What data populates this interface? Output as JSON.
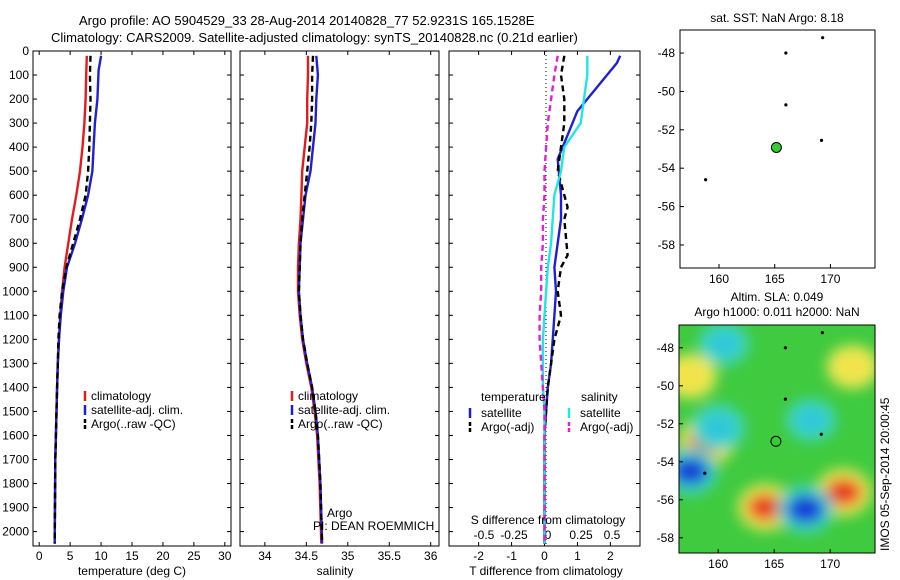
{
  "header": {
    "line1": "Argo profile: AO 5904529_33 28-Aug-2014 20140828_77 52.9231S 165.1528E",
    "line2": "Climatology: CARS2009. Satellite-adjusted climatology: synTS_20140828.nc (0.21d earlier)"
  },
  "colors": {
    "climatology": "#e41a1c",
    "satellite": "#1f1fd6",
    "argo": "#000000",
    "cyan": "#22e5e5",
    "magenta": "#e21fd9",
    "marker": "#33cc33"
  },
  "chart_data": [
    {
      "type": "line",
      "ylabel": "",
      "xlabel": "temperature (deg C)",
      "xlim": [
        -1,
        31
      ],
      "ylim": [
        2060,
        0
      ],
      "xticks": [
        0,
        5,
        10,
        15,
        20,
        25,
        30
      ],
      "yticks": [
        0,
        100,
        200,
        300,
        400,
        500,
        600,
        700,
        800,
        900,
        1000,
        1100,
        1200,
        1300,
        1400,
        1500,
        1600,
        1700,
        1800,
        1900,
        2000
      ],
      "legend": {
        "position": "lower-center",
        "entries": [
          "climatology",
          "satellite-adj. clim.",
          "Argo(..raw -QC)"
        ]
      },
      "series": [
        {
          "name": "climatology",
          "color": "#e41a1c",
          "dash": "",
          "x": [
            7.7,
            7.6,
            7.5,
            7.3,
            7.0,
            6.6,
            6.0,
            5.3,
            4.7,
            4.1,
            3.7,
            3.4,
            3.2,
            3.0,
            2.9,
            2.8,
            2.7,
            2.6,
            2.5
          ],
          "y": [
            20,
            100,
            200,
            300,
            400,
            500,
            600,
            700,
            800,
            900,
            1000,
            1100,
            1200,
            1300,
            1400,
            1500,
            1600,
            1700,
            2050
          ]
        },
        {
          "name": "satellite-adj. clim.",
          "color": "#1f1fd6",
          "dash": "",
          "x": [
            10.0,
            9.6,
            9.4,
            9.0,
            8.8,
            8.6,
            7.9,
            6.9,
            5.8,
            4.5,
            3.9,
            3.5,
            3.2,
            3.0,
            2.9,
            2.8,
            2.7,
            2.6,
            2.5
          ],
          "y": [
            20,
            80,
            200,
            300,
            400,
            500,
            600,
            700,
            800,
            900,
            1000,
            1100,
            1200,
            1300,
            1400,
            1500,
            1600,
            1700,
            2050
          ]
        },
        {
          "name": "Argo(..raw -QC)",
          "color": "#000000",
          "dash": "6,4",
          "x": [
            8.3,
            8.2,
            8.3,
            8.2,
            8.1,
            7.9,
            7.5,
            6.6,
            5.5,
            4.4,
            3.7,
            3.3,
            3.1,
            3.0,
            2.9,
            2.8,
            2.7,
            2.6,
            2.5
          ],
          "y": [
            20,
            100,
            200,
            300,
            400,
            500,
            600,
            700,
            800,
            900,
            1000,
            1100,
            1200,
            1300,
            1400,
            1500,
            1600,
            1700,
            2050
          ]
        }
      ]
    },
    {
      "type": "line",
      "xlabel": "salinity",
      "xlim": [
        33.7,
        36.1
      ],
      "ylim": [
        2060,
        0
      ],
      "xticks": [
        34,
        34.5,
        35,
        35.5,
        36
      ],
      "legend": {
        "position": "lower-center",
        "entries": [
          "climatology",
          "satellite-adj. clim.",
          "Argo(..raw -QC)"
        ]
      },
      "annotations": [
        "Argo",
        "PI: DEAN ROEMMICH"
      ],
      "series": [
        {
          "name": "climatology",
          "color": "#e41a1c",
          "dash": "",
          "x": [
            34.52,
            34.52,
            34.51,
            34.51,
            34.48,
            34.45,
            34.44,
            34.43,
            34.41,
            34.4,
            34.4,
            34.42,
            34.45,
            34.5,
            34.56,
            34.6,
            34.63,
            34.66,
            34.68
          ],
          "y": [
            20,
            100,
            200,
            300,
            400,
            500,
            600,
            700,
            800,
            900,
            1000,
            1100,
            1200,
            1300,
            1400,
            1500,
            1600,
            1800,
            2050
          ]
        },
        {
          "name": "satellite-adj. clim.",
          "color": "#1f1fd6",
          "dash": "",
          "x": [
            34.62,
            34.64,
            34.62,
            34.61,
            34.58,
            34.55,
            34.49,
            34.46,
            34.43,
            34.42,
            34.41,
            34.43,
            34.46,
            34.51,
            34.57,
            34.61,
            34.64,
            34.67,
            34.69
          ],
          "y": [
            20,
            100,
            200,
            300,
            400,
            500,
            600,
            700,
            800,
            900,
            1000,
            1100,
            1200,
            1300,
            1400,
            1500,
            1600,
            1800,
            2050
          ]
        },
        {
          "name": "Argo(..raw -QC)",
          "color": "#000000",
          "dash": "6,4",
          "x": [
            34.58,
            34.57,
            34.57,
            34.56,
            34.54,
            34.51,
            34.48,
            34.45,
            34.43,
            34.42,
            34.41,
            34.43,
            34.46,
            34.51,
            34.57,
            34.61,
            34.64,
            34.67,
            34.69
          ],
          "y": [
            20,
            100,
            200,
            300,
            400,
            500,
            600,
            700,
            800,
            900,
            1000,
            1100,
            1200,
            1300,
            1400,
            1500,
            1600,
            1800,
            2050
          ]
        }
      ]
    },
    {
      "type": "line",
      "xlabel": "T difference from climatology",
      "xlabel2": "S difference from climatology",
      "xlim": [
        -2.9,
        2.9
      ],
      "ylim": [
        2060,
        0
      ],
      "xticks": [
        -2,
        -1,
        0,
        1,
        2
      ],
      "xticks2": [
        "-0.5",
        "-0.25",
        "0",
        "0.25",
        "0.5"
      ],
      "legend": {
        "position": "lower-center",
        "headers": [
          "temperature",
          "salinity"
        ],
        "entries": [
          "satellite",
          "Argo(-adj)",
          "satellite",
          "Argo(-adj)"
        ]
      },
      "series": [
        {
          "name": "temperature satellite",
          "color": "#1f1fd6",
          "dash": "",
          "x": [
            2.3,
            2.2,
            1.6,
            1.0,
            0.7,
            0.4,
            0.5,
            0.5,
            0.4,
            0.3,
            0.35,
            0.3,
            0.2,
            0.1,
            0.05,
            0.0,
            0.0,
            0.0,
            0.0
          ],
          "y": [
            20,
            50,
            150,
            250,
            350,
            450,
            600,
            700,
            800,
            900,
            1000,
            1100,
            1300,
            1400,
            1500,
            1600,
            1700,
            1800,
            2050
          ]
        },
        {
          "name": "temperature Argo(-adj)",
          "color": "#000000",
          "dash": "6,4",
          "x": [
            0.6,
            0.5,
            0.6,
            0.6,
            0.5,
            0.4,
            0.7,
            0.6,
            0.7,
            0.5,
            0.4,
            0.5,
            0.3,
            0.2,
            0.1,
            0.05,
            0.0,
            0.0,
            0.0
          ],
          "y": [
            20,
            100,
            200,
            300,
            400,
            500,
            650,
            700,
            850,
            900,
            1000,
            1100,
            1200,
            1300,
            1400,
            1500,
            1600,
            1700,
            2050
          ]
        },
        {
          "name": "salinity satellite",
          "color": "#22e5e5",
          "dash": "",
          "x": [
            1.3,
            1.3,
            1.2,
            1.1,
            0.6,
            0.5,
            0.3,
            0.25,
            0.2,
            0.1,
            0.05,
            0.0,
            -0.05,
            -0.05,
            -0.05,
            0.0,
            0.0,
            0.0,
            0.0
          ],
          "y": [
            20,
            100,
            200,
            300,
            400,
            500,
            600,
            700,
            800,
            900,
            1000,
            1100,
            1200,
            1300,
            1400,
            1500,
            1600,
            1700,
            2050
          ]
        },
        {
          "name": "salinity Argo(-adj)",
          "color": "#e21fd9",
          "dash": "6,4",
          "x": [
            0.4,
            0.3,
            0.2,
            0.1,
            0.05,
            0.0,
            0.0,
            -0.05,
            -0.05,
            -0.1,
            -0.1,
            -0.15,
            -0.15,
            -0.1,
            -0.05,
            0.0,
            0.0,
            0.0,
            0.0
          ],
          "y": [
            20,
            100,
            200,
            300,
            400,
            500,
            600,
            700,
            800,
            900,
            1000,
            1100,
            1200,
            1300,
            1400,
            1500,
            1600,
            1700,
            2050
          ]
        }
      ]
    },
    {
      "type": "scatter",
      "title": "sat. SST: NaN Argo: 8.18",
      "xlim": [
        156.5,
        174
      ],
      "ylim": [
        -59.2,
        -46.8
      ],
      "xticks": [
        160,
        165,
        170
      ],
      "yticks": [
        -48,
        -50,
        -52,
        -54,
        -56,
        -58
      ],
      "marker": {
        "x": 165.15,
        "y": -52.92,
        "color": "#33cc33"
      },
      "islands": [
        {
          "x": 169.3,
          "y": -47.2
        },
        {
          "x": 166.0,
          "y": -48.0
        },
        {
          "x": 166.0,
          "y": -50.7
        },
        {
          "x": 169.2,
          "y": -52.55
        },
        {
          "x": 158.8,
          "y": -54.6
        }
      ]
    },
    {
      "type": "heatmap",
      "title": "Altim. SLA: 0.049",
      "subtitle": "Argo h1000: 0.011 h2000: NaN",
      "xlim": [
        156.5,
        174
      ],
      "ylim": [
        -58.8,
        -46.8
      ],
      "xticks": [
        160,
        165,
        170
      ],
      "yticks": [
        -48,
        -50,
        -52,
        -54,
        -56,
        -58
      ],
      "marker": {
        "x": 165.15,
        "y": -52.92,
        "color": "#33cc33"
      },
      "blobs": [
        {
          "x": 159.0,
          "y": -52.9,
          "v": 0.95
        },
        {
          "x": 164.2,
          "y": -56.4,
          "v": 0.85
        },
        {
          "x": 171.2,
          "y": -55.6,
          "v": 0.9
        },
        {
          "x": 157.5,
          "y": -49.5,
          "v": 0.7
        },
        {
          "x": 172.0,
          "y": -49.0,
          "v": 0.6
        },
        {
          "x": 160.0,
          "y": -52.2,
          "v": -0.8
        },
        {
          "x": 167.8,
          "y": -56.5,
          "v": -1.0
        },
        {
          "x": 157.5,
          "y": -54.5,
          "v": -0.9
        },
        {
          "x": 160.5,
          "y": -47.8,
          "v": -0.5
        },
        {
          "x": 168.3,
          "y": -51.8,
          "v": -0.45
        }
      ],
      "credit": "IMOS 05-Sep-2014 20:00:45"
    }
  ]
}
